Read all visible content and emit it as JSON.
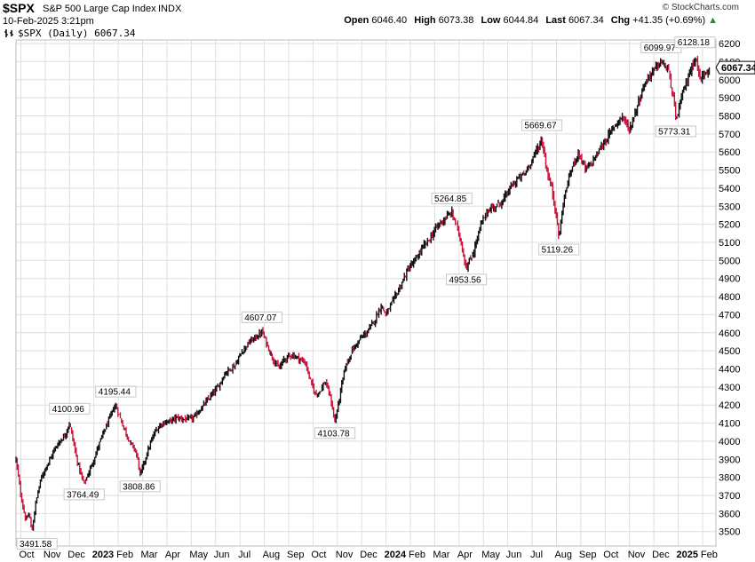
{
  "header": {
    "symbol": "$SPX",
    "name": "S&P 500 Large Cap Index",
    "exchange": "INDX",
    "datetime": "10-Feb-2025 3:21pm",
    "legend": "$SPX (Daily) 6067.34",
    "brand": "© StockCharts.com",
    "quote": {
      "open_label": "Open",
      "open": "6046.40",
      "high_label": "High",
      "high": "6073.38",
      "low_label": "Low",
      "low": "6044.84",
      "last_label": "Last",
      "last": "6067.34",
      "chg_label": "Chg",
      "chg": "+41.35 (+0.69%)",
      "chg_arrow": "▲"
    }
  },
  "chart_data": {
    "type": "line",
    "title": "$SPX S&P 500 Large Cap Index (Daily)",
    "ylim": [
      3420,
      6220
    ],
    "y_ticks": [
      3500,
      3600,
      3700,
      3800,
      3900,
      4000,
      4100,
      4200,
      4300,
      4400,
      4500,
      4600,
      4700,
      4800,
      4900,
      5000,
      5100,
      5200,
      5300,
      5400,
      5500,
      5600,
      5700,
      5800,
      5900,
      6000,
      6100,
      6200
    ],
    "x_ticks": [
      {
        "label": "Oct",
        "m": 0.2,
        "bold": false
      },
      {
        "label": "Nov",
        "m": 1.2,
        "bold": false
      },
      {
        "label": "Dec",
        "m": 2.2,
        "bold": false
      },
      {
        "label": "2023",
        "m": 3.2,
        "bold": true
      },
      {
        "label": "Feb",
        "m": 4.2,
        "bold": false
      },
      {
        "label": "Mar",
        "m": 5.2,
        "bold": false
      },
      {
        "label": "Apr",
        "m": 6.2,
        "bold": false
      },
      {
        "label": "May",
        "m": 7.2,
        "bold": false
      },
      {
        "label": "Jun",
        "m": 8.2,
        "bold": false
      },
      {
        "label": "Jul",
        "m": 9.2,
        "bold": false
      },
      {
        "label": "Aug",
        "m": 10.2,
        "bold": false
      },
      {
        "label": "Sep",
        "m": 11.2,
        "bold": false
      },
      {
        "label": "Oct",
        "m": 12.2,
        "bold": false
      },
      {
        "label": "Nov",
        "m": 13.2,
        "bold": false
      },
      {
        "label": "Dec",
        "m": 14.2,
        "bold": false
      },
      {
        "label": "2024",
        "m": 15.2,
        "bold": true
      },
      {
        "label": "Feb",
        "m": 16.2,
        "bold": false
      },
      {
        "label": "Mar",
        "m": 17.2,
        "bold": false
      },
      {
        "label": "Apr",
        "m": 18.2,
        "bold": false
      },
      {
        "label": "May",
        "m": 19.2,
        "bold": false
      },
      {
        "label": "Jun",
        "m": 20.2,
        "bold": false
      },
      {
        "label": "Jul",
        "m": 21.2,
        "bold": false
      },
      {
        "label": "Aug",
        "m": 22.2,
        "bold": false
      },
      {
        "label": "Sep",
        "m": 23.2,
        "bold": false
      },
      {
        "label": "Oct",
        "m": 24.2,
        "bold": false
      },
      {
        "label": "Nov",
        "m": 25.2,
        "bold": false
      },
      {
        "label": "Dec",
        "m": 26.2,
        "bold": false
      },
      {
        "label": "2025",
        "m": 27.2,
        "bold": true
      },
      {
        "label": "Feb",
        "m": 28.2,
        "bold": false
      }
    ],
    "series": [
      {
        "name": "$SPX close",
        "points": [
          [
            0,
            3900
          ],
          [
            0.2,
            3700
          ],
          [
            0.4,
            3560
          ],
          [
            0.55,
            3600
          ],
          [
            0.65,
            3491.58
          ],
          [
            0.8,
            3650
          ],
          [
            1.0,
            3780
          ],
          [
            1.2,
            3850
          ],
          [
            1.4,
            3900
          ],
          [
            1.6,
            3960
          ],
          [
            1.8,
            4000
          ],
          [
            2.0,
            4030
          ],
          [
            2.2,
            4100.96
          ],
          [
            2.35,
            4000
          ],
          [
            2.5,
            3900
          ],
          [
            2.7,
            3800
          ],
          [
            2.8,
            3764.49
          ],
          [
            3.0,
            3830
          ],
          [
            3.2,
            3900
          ],
          [
            3.4,
            3980
          ],
          [
            3.6,
            4050
          ],
          [
            3.8,
            4110
          ],
          [
            4.0,
            4180
          ],
          [
            4.1,
            4195.44
          ],
          [
            4.3,
            4120
          ],
          [
            4.5,
            4050
          ],
          [
            4.7,
            3990
          ],
          [
            4.9,
            3950
          ],
          [
            5.0,
            3900
          ],
          [
            5.1,
            3808.86
          ],
          [
            5.3,
            3900
          ],
          [
            5.5,
            3980
          ],
          [
            5.7,
            4050
          ],
          [
            6.0,
            4100
          ],
          [
            6.3,
            4110
          ],
          [
            6.6,
            4130
          ],
          [
            7.0,
            4120
          ],
          [
            7.3,
            4130
          ],
          [
            7.6,
            4180
          ],
          [
            8.0,
            4250
          ],
          [
            8.3,
            4300
          ],
          [
            8.6,
            4380
          ],
          [
            9.0,
            4420
          ],
          [
            9.3,
            4500
          ],
          [
            9.6,
            4550
          ],
          [
            10.0,
            4590
          ],
          [
            10.1,
            4607.07
          ],
          [
            10.3,
            4540
          ],
          [
            10.5,
            4470
          ],
          [
            10.8,
            4400
          ],
          [
            11.0,
            4450
          ],
          [
            11.3,
            4480
          ],
          [
            11.6,
            4460
          ],
          [
            11.9,
            4430
          ],
          [
            12.1,
            4330
          ],
          [
            12.3,
            4260
          ],
          [
            12.5,
            4280
          ],
          [
            12.7,
            4330
          ],
          [
            12.9,
            4250
          ],
          [
            13.0,
            4180
          ],
          [
            13.1,
            4103.78
          ],
          [
            13.3,
            4250
          ],
          [
            13.5,
            4400
          ],
          [
            13.8,
            4500
          ],
          [
            14.1,
            4560
          ],
          [
            14.4,
            4600
          ],
          [
            14.7,
            4660
          ],
          [
            15.0,
            4750
          ],
          [
            15.2,
            4700
          ],
          [
            15.5,
            4780
          ],
          [
            15.8,
            4860
          ],
          [
            16.1,
            4950
          ],
          [
            16.4,
            5000
          ],
          [
            16.7,
            5070
          ],
          [
            17.0,
            5120
          ],
          [
            17.3,
            5190
          ],
          [
            17.6,
            5230
          ],
          [
            17.9,
            5264.85
          ],
          [
            18.2,
            5150
          ],
          [
            18.4,
            5020
          ],
          [
            18.5,
            4953.56
          ],
          [
            18.8,
            5050
          ],
          [
            19.1,
            5200
          ],
          [
            19.4,
            5280
          ],
          [
            19.7,
            5300
          ],
          [
            20.0,
            5330
          ],
          [
            20.3,
            5400
          ],
          [
            20.6,
            5450
          ],
          [
            20.9,
            5480
          ],
          [
            21.2,
            5560
          ],
          [
            21.5,
            5640
          ],
          [
            21.6,
            5669.67
          ],
          [
            21.8,
            5500
          ],
          [
            22.0,
            5400
          ],
          [
            22.2,
            5250
          ],
          [
            22.3,
            5119.26
          ],
          [
            22.5,
            5340
          ],
          [
            22.8,
            5500
          ],
          [
            23.1,
            5600
          ],
          [
            23.4,
            5500
          ],
          [
            23.7,
            5550
          ],
          [
            24.0,
            5620
          ],
          [
            24.3,
            5680
          ],
          [
            24.6,
            5750
          ],
          [
            24.9,
            5800
          ],
          [
            25.2,
            5720
          ],
          [
            25.5,
            5850
          ],
          [
            25.8,
            5970
          ],
          [
            26.0,
            6020
          ],
          [
            26.3,
            6070
          ],
          [
            26.5,
            6099.97
          ],
          [
            26.8,
            6050
          ],
          [
            27.0,
            5900
          ],
          [
            27.1,
            5773.31
          ],
          [
            27.4,
            5930
          ],
          [
            27.7,
            6050
          ],
          [
            27.9,
            6128.18
          ],
          [
            28.1,
            6000
          ],
          [
            28.3,
            6040
          ],
          [
            28.5,
            6067.34
          ]
        ]
      }
    ],
    "annotations": [
      {
        "text": "3491.58",
        "m": 0.65,
        "v": 3491.58,
        "pos": "below"
      },
      {
        "text": "4100.96",
        "m": 2.2,
        "v": 4100.96,
        "pos": "above"
      },
      {
        "text": "3764.49",
        "m": 2.8,
        "v": 3764.49,
        "pos": "below"
      },
      {
        "text": "4195.44",
        "m": 4.1,
        "v": 4195.44,
        "pos": "above"
      },
      {
        "text": "3808.86",
        "m": 5.1,
        "v": 3808.86,
        "pos": "below"
      },
      {
        "text": "4607.07",
        "m": 10.1,
        "v": 4607.07,
        "pos": "above"
      },
      {
        "text": "4103.78",
        "m": 13.1,
        "v": 4103.78,
        "pos": "below"
      },
      {
        "text": "5264.85",
        "m": 17.9,
        "v": 5264.85,
        "pos": "above"
      },
      {
        "text": "4953.56",
        "m": 18.5,
        "v": 4953.56,
        "pos": "below"
      },
      {
        "text": "5669.67",
        "m": 21.6,
        "v": 5669.67,
        "pos": "above"
      },
      {
        "text": "5119.26",
        "m": 22.3,
        "v": 5119.26,
        "pos": "below"
      },
      {
        "text": "6099.97",
        "m": 26.5,
        "v": 6099.97,
        "pos": "above"
      },
      {
        "text": "5773.31",
        "m": 27.1,
        "v": 5773.31,
        "pos": "below"
      },
      {
        "text": "6128.18",
        "m": 27.9,
        "v": 6128.18,
        "pos": "above"
      }
    ],
    "last_value_label": "6067.34",
    "last_value": 6067.34,
    "colors": {
      "up": "#111111",
      "down": "#c8143c",
      "grid": "#dedede"
    }
  }
}
